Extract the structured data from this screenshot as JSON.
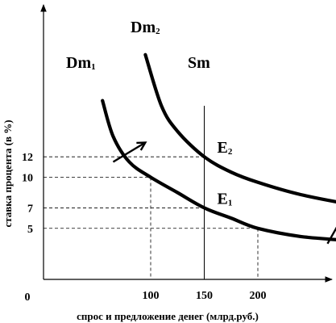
{
  "chart_data": {
    "type": "line",
    "xlabel": "спрос и предложение денег (млрд.руб.)",
    "ylabel": "ставка процента (в %)",
    "origin_label": "0",
    "x_ticks": [
      "100",
      "150",
      "200"
    ],
    "y_ticks": [
      "5",
      "7",
      "10",
      "12"
    ],
    "xlim": [
      0,
      390
    ],
    "ylim": [
      0,
      23
    ],
    "series": [
      {
        "name_main": "Dm",
        "name_sub": "1",
        "points": [
          [
            55,
            17.5
          ],
          [
            65,
            14
          ],
          [
            80,
            11.5
          ],
          [
            100,
            10
          ],
          [
            125,
            8.5
          ],
          [
            150,
            7
          ],
          [
            175,
            6
          ],
          [
            200,
            5
          ],
          [
            240,
            4.2
          ],
          [
            285,
            3.8
          ]
        ]
      },
      {
        "name_main": "Dm",
        "name_sub": "2",
        "points": [
          [
            95,
            22
          ],
          [
            110,
            17
          ],
          [
            125,
            14.5
          ],
          [
            150,
            12
          ],
          [
            175,
            10.5
          ],
          [
            200,
            9.5
          ],
          [
            240,
            8.3
          ],
          [
            290,
            7.3
          ],
          [
            340,
            6.6
          ],
          [
            355,
            6.4
          ]
        ]
      }
    ],
    "supply": {
      "name_main": "Sm",
      "name_sub": "",
      "x": 150,
      "y_top": 17
    },
    "equilibria": [
      {
        "main": "E",
        "sub": "2",
        "x": 150,
        "y": 12
      },
      {
        "main": "E",
        "sub": "1",
        "x": 150,
        "y": 7
      }
    ],
    "guides": [
      {
        "x": 150,
        "y": 12
      },
      {
        "x": 100,
        "y": 10
      },
      {
        "x": 150,
        "y": 7
      },
      {
        "x": 200,
        "y": 5
      }
    ],
    "shift_arrows": [
      {
        "from": [
          65,
          11.5
        ],
        "to": [
          95,
          13.4
        ]
      },
      {
        "from": [
          265,
          3.5
        ],
        "to": [
          285,
          7.2
        ]
      }
    ],
    "grid": false,
    "legend": "none"
  }
}
